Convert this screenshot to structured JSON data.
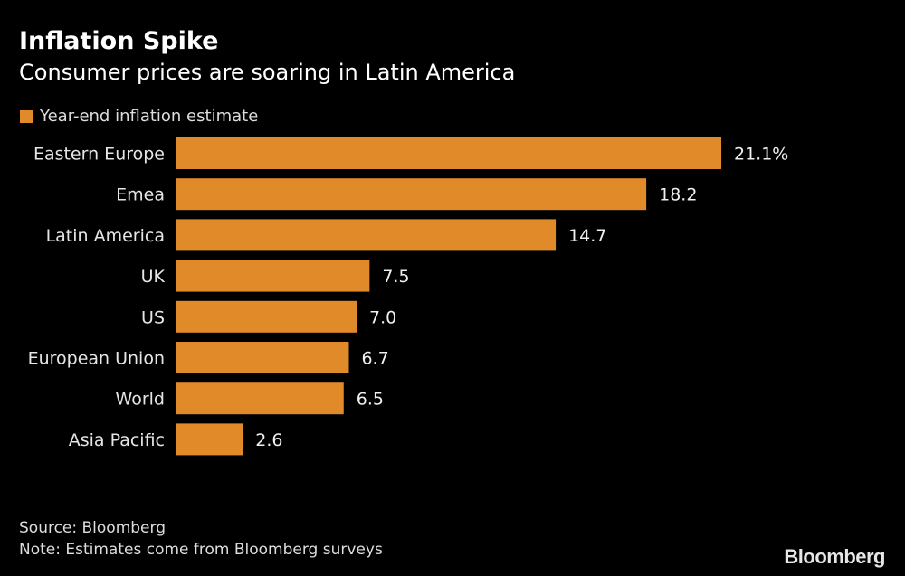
{
  "chart_data": {
    "type": "bar",
    "orientation": "horizontal",
    "title": "Inflation Spike",
    "subtitle": "Consumer prices are soaring in Latin America",
    "categories": [
      "Eastern Europe",
      "Emea",
      "Latin America",
      "UK",
      "US",
      "European Union",
      "World",
      "Asia Pacific"
    ],
    "series": [
      {
        "name": "Year-end inflation estimate",
        "values": [
          21.1,
          18.2,
          14.7,
          7.5,
          7.0,
          6.7,
          6.5,
          2.6
        ],
        "color": "#e08a2a"
      }
    ],
    "data_labels": [
      "21.1%",
      "18.2",
      "14.7",
      "7.5",
      "7.0",
      "6.7",
      "6.5",
      "2.6"
    ],
    "legend_position": "top-left",
    "grid": false,
    "xlim": [
      0,
      21.1
    ]
  },
  "footer": {
    "source": "Source: Bloomberg",
    "note": "Note: Estimates come from Bloomberg surveys",
    "logo": "Bloomberg"
  },
  "colors": {
    "background": "#000000",
    "bar": "#e08a2a"
  }
}
